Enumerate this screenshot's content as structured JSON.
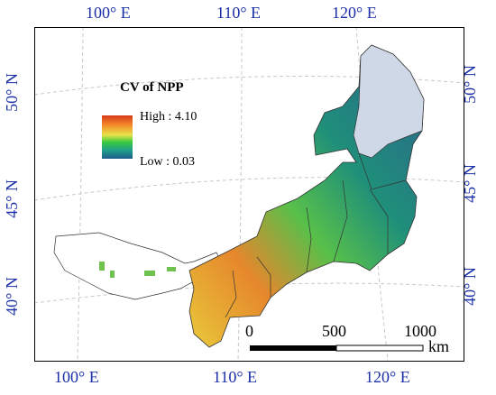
{
  "map": {
    "top_labels": [
      "100° E",
      "110° E",
      "120° E"
    ],
    "bottom_labels": [
      "100° E",
      "110° E",
      "120° E"
    ],
    "left_labels": [
      "50° N",
      "45° N",
      "40° N"
    ],
    "right_labels": [
      "50° N",
      "45° N",
      "40° N"
    ]
  },
  "legend": {
    "title": "CV of NPP",
    "high": "High : 4.10",
    "low": "Low : 0.03"
  },
  "scalebar": {
    "ticks": [
      "0",
      "500",
      "1000"
    ],
    "unit": "km"
  }
}
